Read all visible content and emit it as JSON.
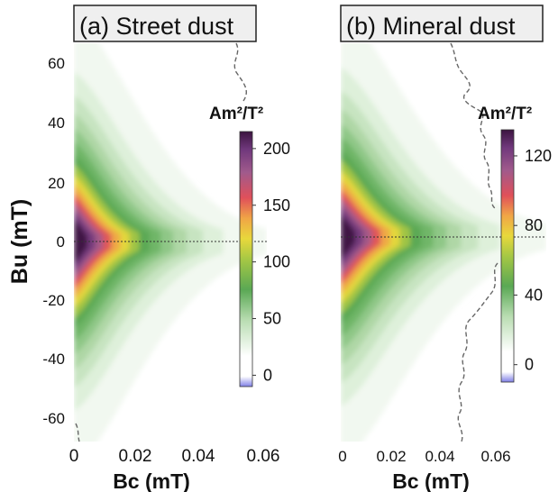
{
  "figure": {
    "ylabel": "Bu (mT)",
    "colors": {
      "title_box": "#efefef",
      "border": "#222222",
      "zero_line": "#333333",
      "mask_curve": "#666666"
    }
  },
  "chart_data": [
    {
      "type": "heatmap",
      "title": "(a) Street dust",
      "xlabel": "Bc (mT)",
      "ylabel": "Bu (mT)",
      "xlim": [
        0,
        0.06
      ],
      "ylim": [
        -68,
        68
      ],
      "x_ticks": [
        "0",
        "0.02",
        "0.04",
        "0.06"
      ],
      "y_ticks": [
        "60",
        "40",
        "20",
        "0",
        "-20",
        "-40",
        "-60"
      ],
      "colorbar": {
        "label": "Am²/T²",
        "min": -10,
        "max": 215,
        "ticks": [
          "200",
          "150",
          "100",
          "50",
          "0"
        ]
      },
      "distribution": {
        "peak_value": 205,
        "peak_bc": 0.0,
        "peak_bu": 0
      }
    },
    {
      "type": "heatmap",
      "title": "(b) Mineral dust",
      "xlabel": "Bc (mT)",
      "ylabel": "",
      "xlim": [
        0,
        0.07
      ],
      "ylim": [
        -68,
        68
      ],
      "x_ticks": [
        "0",
        "0.02",
        "0.04",
        "0.06"
      ],
      "y_ticks": [],
      "colorbar": {
        "label": "Am²/T²",
        "min": -10,
        "max": 135,
        "ticks": [
          "120",
          "80",
          "40",
          "0"
        ]
      },
      "distribution": {
        "peak_value": 125,
        "peak_bc": 0.0,
        "peak_bu": 0
      }
    }
  ]
}
